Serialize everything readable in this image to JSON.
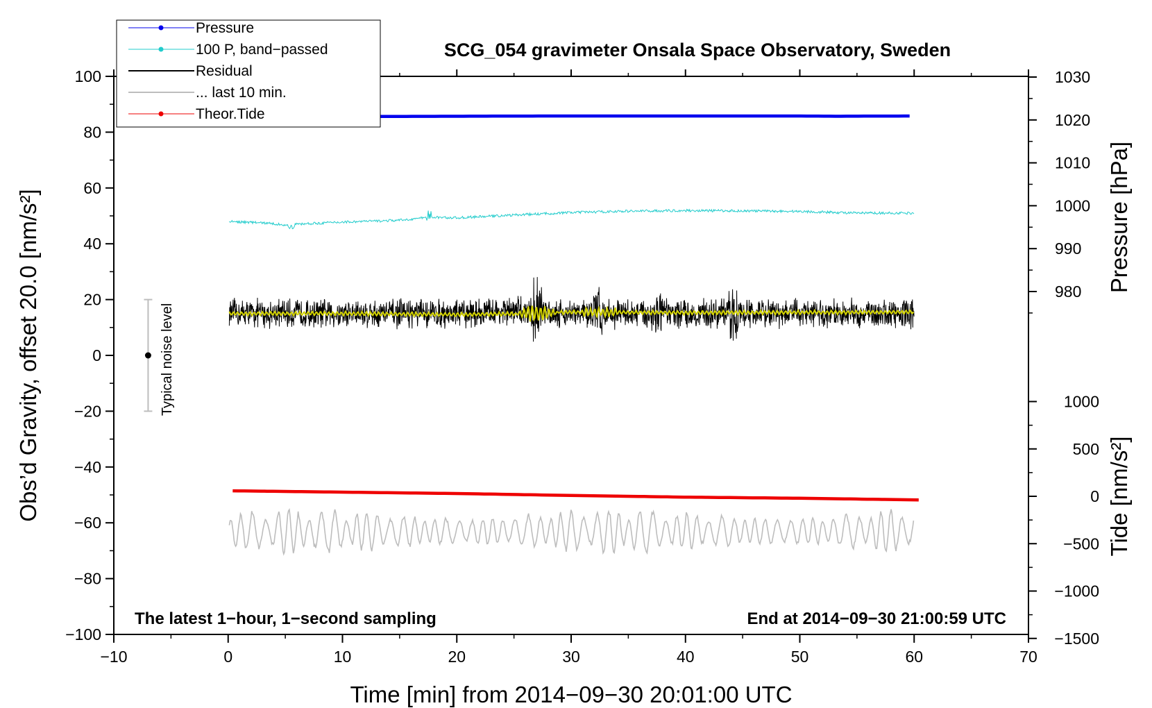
{
  "chart_data": {
    "type": "line",
    "title": "SCG_054 gravimeter Onsala Space Observatory, Sweden",
    "xlabel": "Time [min] from 2014−09−30 20:01:00 UTC",
    "ylabel_left": "Obs’d Gravity, offset 20.0 [nm/s²]",
    "ylabel_right_top": "Pressure [hPa]",
    "ylabel_right_bottom": "Tide [nm/s²]",
    "xlim": [
      -10,
      70
    ],
    "ylim_left": [
      -100,
      100
    ],
    "x_ticks": [
      "−10",
      "0",
      "10",
      "20",
      "30",
      "40",
      "50",
      "60",
      "70"
    ],
    "y_ticks_left": [
      "100",
      "80",
      "60",
      "40",
      "20",
      "0",
      "−20",
      "−40",
      "−60",
      "−80",
      "−100"
    ],
    "pressure_axis": {
      "ticks": [
        "1030",
        "1020",
        "1010",
        "1000",
        "990",
        "980"
      ],
      "values": [
        1030,
        1020,
        1010,
        1000,
        990,
        980
      ]
    },
    "tide_axis": {
      "ticks": [
        "1000",
        "500",
        "0",
        "−500",
        "−1000",
        "−1500"
      ],
      "values": [
        1000,
        500,
        0,
        -500,
        -1000,
        -1500
      ]
    },
    "legend": [
      {
        "label": "Pressure",
        "color": "#0000ee",
        "marker": "dot"
      },
      {
        "label": "100 P, band−passed",
        "color": "#22cccc",
        "marker": "dot"
      },
      {
        "label": "Residual",
        "color": "#000000",
        "marker": "none"
      },
      {
        "label": "... last 10 min.",
        "color": "#bdbdbd",
        "marker": "none"
      },
      {
        "label": "Theor.Tide",
        "color": "#ee0000",
        "marker": "dot"
      }
    ],
    "series": [
      {
        "name": "Pressure",
        "color": "#0000ee",
        "x": [
          0,
          10,
          20,
          28,
          30,
          40,
          50,
          53,
          60
        ],
        "y": [
          85.6,
          85.6,
          85.7,
          85.8,
          85.8,
          85.8,
          85.8,
          85.7,
          85.8
        ]
      },
      {
        "name": "100 P, band−passed",
        "color": "#22cccc",
        "x": [
          0,
          3,
          5,
          10,
          15,
          17.6,
          20,
          25,
          30,
          35,
          40,
          45,
          50,
          55,
          60
        ],
        "y": [
          48,
          47.5,
          46.8,
          47.8,
          48.4,
          49.5,
          49.3,
          50.3,
          51.2,
          51.7,
          51.9,
          51.8,
          51.6,
          51.0,
          51.0
        ]
      },
      {
        "name": "Residual",
        "color": "#000000",
        "x": [
          0,
          10,
          20,
          27,
          30,
          37.5,
          40,
          50,
          60
        ],
        "y": [
          15,
          15,
          15,
          16,
          15,
          15,
          15,
          15,
          15
        ],
        "noise_amplitude": 6
      },
      {
        "name": "Residual smoothed",
        "color": "#d4d400",
        "x": [
          0,
          10,
          20,
          27,
          30,
          40,
          50,
          60
        ],
        "y": [
          15,
          15,
          14.6,
          15,
          15.5,
          15.3,
          15.4,
          15.5
        ]
      },
      {
        "name": "... last 10 min.",
        "color": "#bdbdbd",
        "x": [
          0,
          60
        ],
        "y": [
          -63,
          -63
        ],
        "amplitude": 9
      },
      {
        "name": "Theor.Tide",
        "color": "#ee0000",
        "x": [
          0,
          10,
          20,
          30,
          40,
          50,
          60.5
        ],
        "y": [
          -48.5,
          -49,
          -49.5,
          -50.2,
          -50.8,
          -51.2,
          -51.8
        ]
      }
    ],
    "noise_bar": {
      "label": "Typical noise level",
      "x": -7,
      "y": 0,
      "low": -20,
      "high": 20
    },
    "annotations": {
      "left": "The latest 1−hour, 1−second sampling",
      "right": "End at 2014−09−30 21:00:59 UTC"
    }
  }
}
